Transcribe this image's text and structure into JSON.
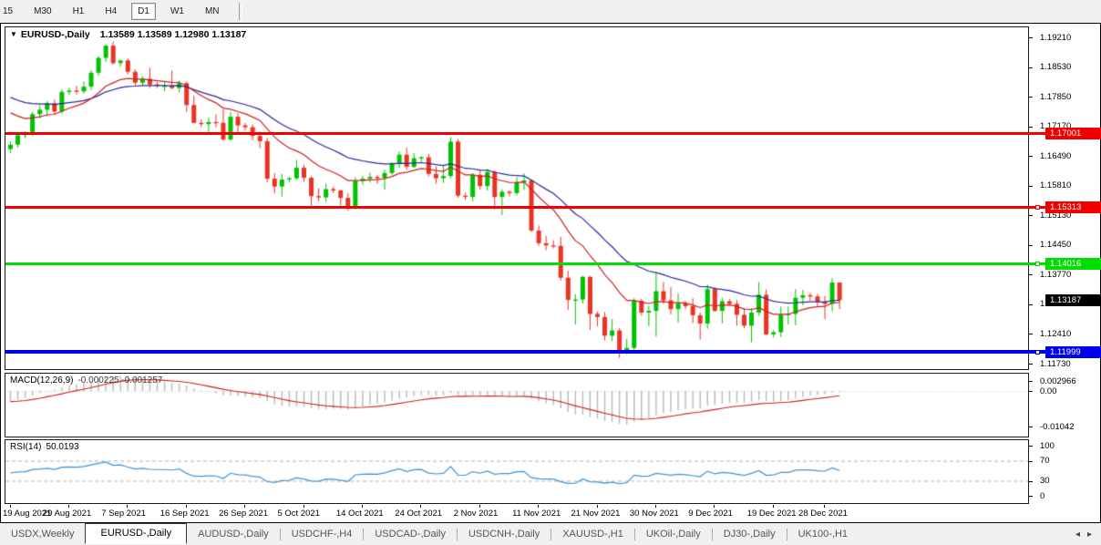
{
  "toolbar": {
    "timeframes": [
      "15",
      "M30",
      "H1",
      "H4",
      "D1",
      "W1",
      "MN"
    ],
    "active": "D1"
  },
  "chart_data": {
    "type": "candlestick",
    "symbol": "EURUSD-,Daily",
    "title_values": "1.13589 1.13589 1.12980 1.13187",
    "up_color": "#00c200",
    "down_color": "#ea3323",
    "price_axis": {
      "top": 1.1921,
      "bottom": 1.1173,
      "ticks": [
        "1.19210",
        "1.18530",
        "1.17850",
        "1.17170",
        "1.16490",
        "1.15810",
        "1.15130",
        "1.14450",
        "1.13770",
        "1.13090",
        "1.12410",
        "1.11730"
      ]
    },
    "candles": [
      [
        1.1665,
        1.1682,
        1.1656,
        1.1675
      ],
      [
        1.1675,
        1.1704,
        1.1668,
        1.1697
      ],
      [
        1.1697,
        1.1706,
        1.169,
        1.17
      ],
      [
        1.17,
        1.175,
        1.1695,
        1.1745
      ],
      [
        1.1745,
        1.1765,
        1.1735,
        1.1755
      ],
      [
        1.1755,
        1.1775,
        1.174,
        1.177
      ],
      [
        1.177,
        1.1779,
        1.1744,
        1.1751
      ],
      [
        1.1751,
        1.1802,
        1.1746,
        1.1796
      ],
      [
        1.1796,
        1.1805,
        1.1789,
        1.1799
      ],
      [
        1.1799,
        1.181,
        1.179,
        1.1797
      ],
      [
        1.1797,
        1.182,
        1.1792,
        1.1808
      ],
      [
        1.1808,
        1.1845,
        1.18,
        1.184
      ],
      [
        1.184,
        1.1878,
        1.1833,
        1.1874
      ],
      [
        1.1874,
        1.1905,
        1.1865,
        1.1902
      ],
      [
        1.1902,
        1.1911,
        1.1858,
        1.1862
      ],
      [
        1.1862,
        1.187,
        1.1854,
        1.1868
      ],
      [
        1.1868,
        1.1873,
        1.1836,
        1.1842
      ],
      [
        1.1842,
        1.1848,
        1.181,
        1.1817
      ],
      [
        1.1817,
        1.1832,
        1.1811,
        1.1826
      ],
      [
        1.1826,
        1.1851,
        1.1805,
        1.1813
      ],
      [
        1.1813,
        1.1818,
        1.1805,
        1.181
      ],
      [
        1.181,
        1.1819,
        1.1797,
        1.181
      ],
      [
        1.181,
        1.1845,
        1.1802,
        1.1805
      ],
      [
        1.1805,
        1.1822,
        1.1795,
        1.1816
      ],
      [
        1.1816,
        1.182,
        1.175,
        1.1766
      ],
      [
        1.1766,
        1.1787,
        1.1724,
        1.1725
      ],
      [
        1.1725,
        1.1733,
        1.1715,
        1.1722
      ],
      [
        1.1722,
        1.1737,
        1.17,
        1.1727
      ],
      [
        1.1727,
        1.1745,
        1.1715,
        1.1725
      ],
      [
        1.1725,
        1.1756,
        1.1684,
        1.1687
      ],
      [
        1.1687,
        1.175,
        1.1683,
        1.1739
      ],
      [
        1.1739,
        1.1747,
        1.1701,
        1.1719
      ],
      [
        1.1719,
        1.1725,
        1.1708,
        1.1715
      ],
      [
        1.1715,
        1.1721,
        1.1685,
        1.1695
      ],
      [
        1.1695,
        1.1705,
        1.1667,
        1.1683
      ],
      [
        1.1683,
        1.169,
        1.1589,
        1.1597
      ],
      [
        1.1597,
        1.161,
        1.1563,
        1.1579
      ],
      [
        1.1579,
        1.1608,
        1.1556,
        1.1595
      ],
      [
        1.1595,
        1.1601,
        1.1588,
        1.1598
      ],
      [
        1.1598,
        1.164,
        1.1594,
        1.1622
      ],
      [
        1.1622,
        1.1629,
        1.159,
        1.1599
      ],
      [
        1.1599,
        1.1603,
        1.1529,
        1.1557
      ],
      [
        1.1557,
        1.1575,
        1.1546,
        1.1554
      ],
      [
        1.1554,
        1.1586,
        1.1544,
        1.1573
      ],
      [
        1.1573,
        1.1579,
        1.1564,
        1.157
      ],
      [
        1.157,
        1.1572,
        1.1535,
        1.1553
      ],
      [
        1.1553,
        1.1564,
        1.1524,
        1.153
      ],
      [
        1.153,
        1.16,
        1.1527,
        1.1592
      ],
      [
        1.1592,
        1.1603,
        1.1583,
        1.1597
      ],
      [
        1.1597,
        1.1611,
        1.1588,
        1.1601
      ],
      [
        1.1601,
        1.1606,
        1.1585,
        1.1598
      ],
      [
        1.1598,
        1.1618,
        1.1572,
        1.161
      ],
      [
        1.161,
        1.1635,
        1.1606,
        1.1633
      ],
      [
        1.1633,
        1.1659,
        1.1622,
        1.1652
      ],
      [
        1.1652,
        1.1668,
        1.1617,
        1.1624
      ],
      [
        1.1624,
        1.1656,
        1.1621,
        1.1644
      ],
      [
        1.1644,
        1.1649,
        1.1635,
        1.1646
      ],
      [
        1.1646,
        1.1653,
        1.1602,
        1.1608
      ],
      [
        1.1608,
        1.1625,
        1.1585,
        1.1598
      ],
      [
        1.1598,
        1.1626,
        1.1587,
        1.1603
      ],
      [
        1.1603,
        1.1692,
        1.1598,
        1.1682
      ],
      [
        1.1682,
        1.1688,
        1.1553,
        1.1558
      ],
      [
        1.1558,
        1.1565,
        1.1548,
        1.1555
      ],
      [
        1.1555,
        1.161,
        1.1545,
        1.1606
      ],
      [
        1.1606,
        1.1617,
        1.1572,
        1.158
      ],
      [
        1.158,
        1.162,
        1.157,
        1.1612
      ],
      [
        1.1612,
        1.1616,
        1.1527,
        1.1555
      ],
      [
        1.1555,
        1.1573,
        1.1513,
        1.1567
      ],
      [
        1.1567,
        1.157,
        1.1556,
        1.1564
      ],
      [
        1.1564,
        1.16,
        1.1558,
        1.1589
      ],
      [
        1.1589,
        1.1609,
        1.1571,
        1.1593
      ],
      [
        1.1593,
        1.1595,
        1.1475,
        1.1478
      ],
      [
        1.1478,
        1.149,
        1.1443,
        1.1449
      ],
      [
        1.1449,
        1.1466,
        1.1433,
        1.1444
      ],
      [
        1.1444,
        1.1456,
        1.1437,
        1.1443
      ],
      [
        1.1443,
        1.1464,
        1.1364,
        1.137
      ],
      [
        1.137,
        1.1386,
        1.1296,
        1.1319
      ],
      [
        1.1319,
        1.1332,
        1.1263,
        1.132
      ],
      [
        1.132,
        1.1374,
        1.1311,
        1.1372
      ],
      [
        1.1372,
        1.1374,
        1.125,
        1.1287
      ],
      [
        1.1287,
        1.1292,
        1.1259,
        1.128
      ],
      [
        1.128,
        1.1291,
        1.1226,
        1.1237
      ],
      [
        1.1237,
        1.1275,
        1.1225,
        1.1249
      ],
      [
        1.1249,
        1.1255,
        1.1186,
        1.1199
      ],
      [
        1.1199,
        1.123,
        1.1194,
        1.1209
      ],
      [
        1.1209,
        1.1323,
        1.1204,
        1.1317
      ],
      [
        1.1317,
        1.1322,
        1.1283,
        1.129
      ],
      [
        1.129,
        1.1306,
        1.1259,
        1.1294
      ],
      [
        1.1294,
        1.1383,
        1.1235,
        1.1339
      ],
      [
        1.1339,
        1.136,
        1.131,
        1.1318
      ],
      [
        1.1318,
        1.1348,
        1.1286,
        1.1298
      ],
      [
        1.1298,
        1.1334,
        1.1267,
        1.1311
      ],
      [
        1.1311,
        1.1317,
        1.1298,
        1.1305
      ],
      [
        1.1305,
        1.1323,
        1.1266,
        1.1284
      ],
      [
        1.1284,
        1.1291,
        1.1228,
        1.1265
      ],
      [
        1.1265,
        1.1354,
        1.1253,
        1.1344
      ],
      [
        1.1344,
        1.1348,
        1.1292,
        1.1294
      ],
      [
        1.1294,
        1.1324,
        1.1265,
        1.1316
      ],
      [
        1.1316,
        1.1321,
        1.1306,
        1.131
      ],
      [
        1.131,
        1.1319,
        1.126,
        1.1285
      ],
      [
        1.1285,
        1.13,
        1.1254,
        1.126
      ],
      [
        1.126,
        1.13,
        1.1222,
        1.129
      ],
      [
        1.129,
        1.136,
        1.1283,
        1.1331
      ],
      [
        1.1331,
        1.1343,
        1.1238,
        1.124
      ],
      [
        1.124,
        1.125,
        1.1233,
        1.1245
      ],
      [
        1.1245,
        1.1304,
        1.1234,
        1.1285
      ],
      [
        1.1285,
        1.1304,
        1.1263,
        1.1287
      ],
      [
        1.1287,
        1.1344,
        1.1261,
        1.1324
      ],
      [
        1.1324,
        1.1342,
        1.1307,
        1.133
      ],
      [
        1.133,
        1.1335,
        1.1317,
        1.1327
      ],
      [
        1.1327,
        1.1333,
        1.1304,
        1.1315
      ],
      [
        1.1315,
        1.1328,
        1.1275,
        1.131
      ],
      [
        1.131,
        1.1369,
        1.1293,
        1.13589
      ],
      [
        1.13589,
        1.13589,
        1.1298,
        1.13187
      ]
    ],
    "ma_fast": {
      "period": 13,
      "seed": 1.176,
      "color": "#cf1f1f"
    },
    "ma_slow": {
      "period": 26,
      "seed": 1.1792,
      "color": "#28289b"
    },
    "hlines": [
      {
        "value": 1.17001,
        "label": "1.17001",
        "color": "#f10000",
        "thickness": 3,
        "marker": false
      },
      {
        "value": 1.15313,
        "label": "1.15313",
        "color": "#f10000",
        "thickness": 3,
        "marker": true
      },
      {
        "value": 1.14016,
        "label": "1.14016",
        "color": "#00dd00",
        "thickness": 3,
        "marker": true
      },
      {
        "value": 1.11999,
        "label": "1.11999",
        "color": "#0000f1",
        "thickness": 4,
        "marker": true
      }
    ],
    "bid_tag": {
      "value": 1.13187,
      "label": "1.13187",
      "bg": "#000000"
    },
    "date_labels": [
      {
        "text": "19 Aug 2021",
        "candle": 0
      },
      {
        "text": "29 Aug 2021",
        "candle": 8
      },
      {
        "text": "7 Sep 2021",
        "candle": 16
      },
      {
        "text": "16 Sep 2021",
        "candle": 24
      },
      {
        "text": "26 Sep 2021",
        "candle": 32
      },
      {
        "text": "5 Oct 2021",
        "candle": 40
      },
      {
        "text": "14 Oct 2021",
        "candle": 48
      },
      {
        "text": "24 Oct 2021",
        "candle": 56
      },
      {
        "text": "2 Nov 2021",
        "candle": 64
      },
      {
        "text": "11 Nov 2021",
        "candle": 72
      },
      {
        "text": "21 Nov 2021",
        "candle": 80
      },
      {
        "text": "30 Nov 2021",
        "candle": 88
      },
      {
        "text": "9 Dec 2021",
        "candle": 96
      },
      {
        "text": "19 Dec 2021",
        "candle": 104
      },
      {
        "text": "28 Dec 2021",
        "candle": 111
      }
    ],
    "macd": {
      "label": "MACD(12,26,9)",
      "values_text": "-0.000225 -0.001257",
      "fast": 12,
      "slow": 26,
      "signal": 9,
      "seed_fast": 1.1655,
      "seed_slow": 1.169,
      "axis_max": 0.002966,
      "axis_min": -0.01042,
      "axis_labels": [
        "0.002966",
        "0.00",
        "-0.01042"
      ],
      "hist_color": "#b9b9b9",
      "line_color": "#cf1f1f"
    },
    "rsi": {
      "label": "RSI(14)",
      "value": "50.0193",
      "period": 14,
      "seed_gain": 0.002,
      "seed_loss": 0.0024,
      "levels": [
        70,
        30
      ],
      "axis_labels": [
        "100",
        "70",
        "30",
        "0"
      ],
      "color": "#3f92d2",
      "level_color": "#b4b4b4"
    }
  },
  "tab_bar": {
    "tabs": [
      {
        "label": "USDX,Weekly",
        "active": false
      },
      {
        "label": "EURUSD-,Daily",
        "active": true
      },
      {
        "label": "AUDUSD-,Daily",
        "active": false
      },
      {
        "label": "USDCHF-,H4",
        "active": false
      },
      {
        "label": "USDCAD-,Daily",
        "active": false
      },
      {
        "label": "USDCNH-,Daily",
        "active": false
      },
      {
        "label": "XAUUSD-,H1",
        "active": false
      },
      {
        "label": "UKOil-,Daily",
        "active": false
      },
      {
        "label": "DJ30-,Daily",
        "active": false
      },
      {
        "label": "UK100-,H1",
        "active": false
      }
    ],
    "left_arrow": "◂",
    "right_arrow": "▸"
  }
}
